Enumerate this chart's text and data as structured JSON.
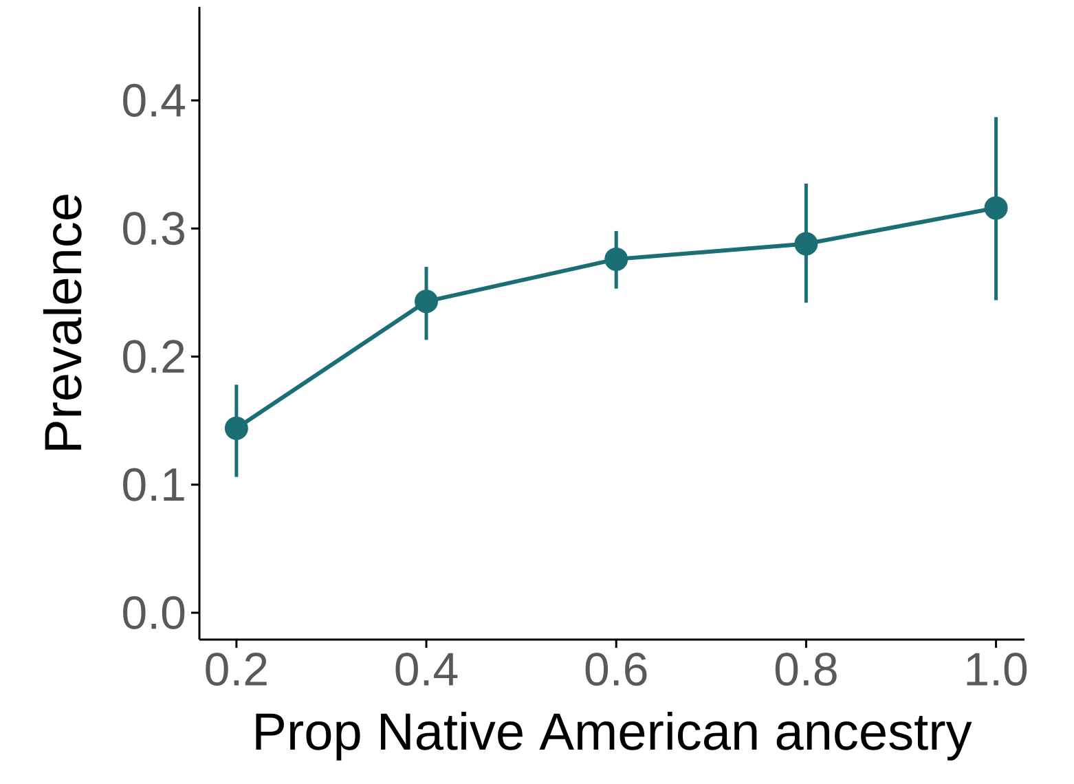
{
  "chart_data": {
    "type": "line",
    "xlabel": "Prop Native American ancestry",
    "ylabel": "Prevalence",
    "x": [
      0.2,
      0.4,
      0.6,
      0.8,
      1.0
    ],
    "series": [
      {
        "color": "#1b6f74",
        "values": [
          0.144,
          0.243,
          0.276,
          0.288,
          0.316
        ],
        "errors": [
          [
            0.106,
            0.178
          ],
          [
            0.213,
            0.27
          ],
          [
            0.253,
            0.298
          ],
          [
            0.242,
            0.335
          ],
          [
            0.244,
            0.387
          ]
        ]
      }
    ],
    "xlim": [
      0.161,
      1.03
    ],
    "ylim": [
      -0.021,
      0.473
    ],
    "xticks": [
      {
        "value": 0.2,
        "label": "0.2"
      },
      {
        "value": 0.4,
        "label": "0.4"
      },
      {
        "value": 0.6,
        "label": "0.6"
      },
      {
        "value": 0.8,
        "label": "0.8"
      },
      {
        "value": 1.0,
        "label": "1.0"
      }
    ],
    "yticks": [
      {
        "value": 0.0,
        "label": "0.0"
      },
      {
        "value": 0.1,
        "label": "0.1"
      },
      {
        "value": 0.2,
        "label": "0.2"
      },
      {
        "value": 0.3,
        "label": "0.3"
      },
      {
        "value": 0.4,
        "label": "0.4"
      }
    ],
    "grid": false,
    "marker": "circle",
    "line_style": "solid"
  }
}
